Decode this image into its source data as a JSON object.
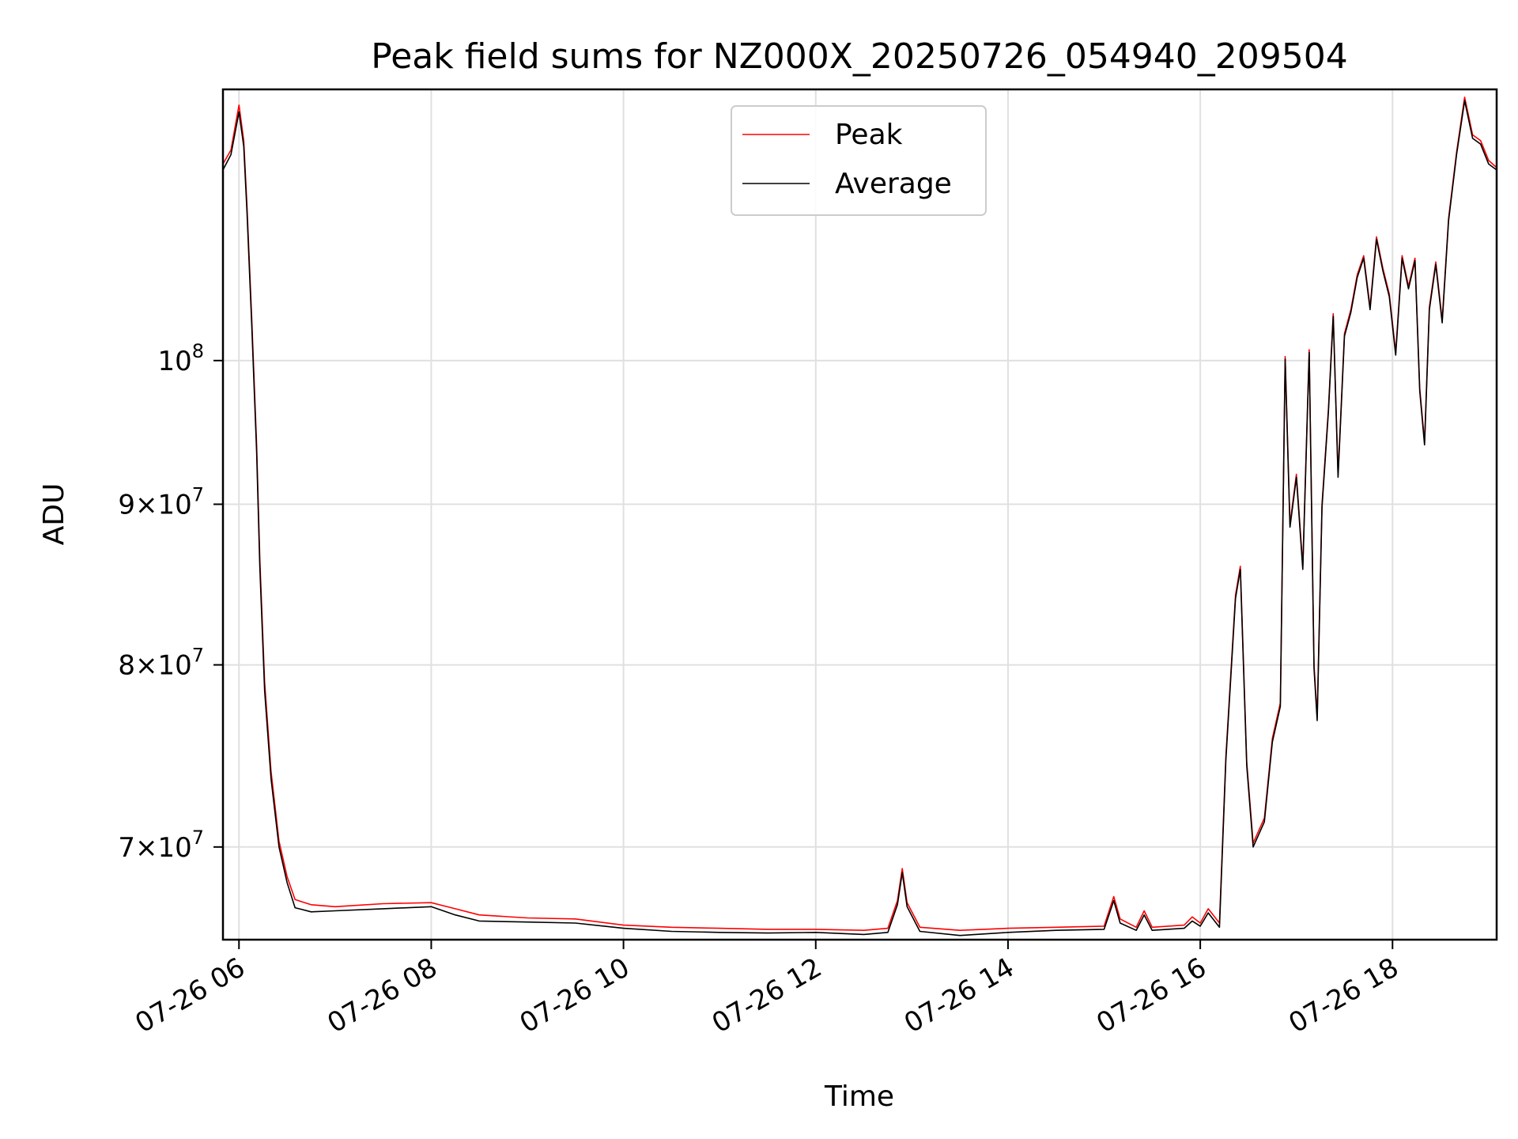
{
  "chart_data": {
    "type": "line",
    "title": "Peak field sums for NZ000X_20250726_054940_209504",
    "xlabel": "Time",
    "ylabel": "ADU",
    "yscale": "log",
    "grid": true,
    "legend_position": "top-center",
    "xlim": [
      "2025-07-26 05:50",
      "2025-07-26 19:05"
    ],
    "ylim": [
      65400000,
      122000000
    ],
    "x_ticks": [
      {
        "t": "2025-07-26 06:00",
        "label": "07-26 06"
      },
      {
        "t": "2025-07-26 08:00",
        "label": "07-26 08"
      },
      {
        "t": "2025-07-26 10:00",
        "label": "07-26 10"
      },
      {
        "t": "2025-07-26 12:00",
        "label": "07-26 12"
      },
      {
        "t": "2025-07-26 14:00",
        "label": "07-26 14"
      },
      {
        "t": "2025-07-26 16:00",
        "label": "07-26 16"
      },
      {
        "t": "2025-07-26 18:00",
        "label": "07-26 18"
      }
    ],
    "y_ticks": [
      {
        "value": 70000000,
        "mant": "7",
        "exp": "7"
      },
      {
        "value": 80000000,
        "mant": "8",
        "exp": "7"
      },
      {
        "value": 90000000,
        "mant": "9",
        "exp": "7"
      },
      {
        "value": 100000000,
        "mant": "",
        "exp": "8"
      }
    ],
    "series": [
      {
        "name": "Peak",
        "color": "#ff0000",
        "points": [
          [
            "2025-07-26 05:50",
            115500000
          ],
          [
            "2025-07-26 05:55",
            116700000
          ],
          [
            "2025-07-26 06:00",
            120600000
          ],
          [
            "2025-07-26 06:03",
            117500000
          ],
          [
            "2025-07-26 06:05",
            112000000
          ],
          [
            "2025-07-26 06:08",
            103000000
          ],
          [
            "2025-07-26 06:11",
            94000000
          ],
          [
            "2025-07-26 06:13",
            86500000
          ],
          [
            "2025-07-26 06:16",
            79000000
          ],
          [
            "2025-07-26 06:20",
            74000000
          ],
          [
            "2025-07-26 06:25",
            70300000
          ],
          [
            "2025-07-26 06:30",
            68500000
          ],
          [
            "2025-07-26 06:35",
            67350000
          ],
          [
            "2025-07-26 06:45",
            67100000
          ],
          [
            "2025-07-26 07:00",
            67000000
          ],
          [
            "2025-07-26 07:30",
            67150000
          ],
          [
            "2025-07-26 08:00",
            67200000
          ],
          [
            "2025-07-26 08:15",
            66900000
          ],
          [
            "2025-07-26 08:30",
            66600000
          ],
          [
            "2025-07-26 09:00",
            66450000
          ],
          [
            "2025-07-26 09:30",
            66400000
          ],
          [
            "2025-07-26 10:00",
            66100000
          ],
          [
            "2025-07-26 10:30",
            66000000
          ],
          [
            "2025-07-26 11:00",
            65950000
          ],
          [
            "2025-07-26 11:30",
            65900000
          ],
          [
            "2025-07-26 12:00",
            65900000
          ],
          [
            "2025-07-26 12:30",
            65850000
          ],
          [
            "2025-07-26 12:45",
            65950000
          ],
          [
            "2025-07-26 12:51",
            67300000
          ],
          [
            "2025-07-26 12:54",
            68900000
          ],
          [
            "2025-07-26 12:57",
            67200000
          ],
          [
            "2025-07-26 13:05",
            66000000
          ],
          [
            "2025-07-26 13:30",
            65850000
          ],
          [
            "2025-07-26 14:00",
            65950000
          ],
          [
            "2025-07-26 14:30",
            66000000
          ],
          [
            "2025-07-26 15:00",
            66050000
          ],
          [
            "2025-07-26 15:06",
            67500000
          ],
          [
            "2025-07-26 15:10",
            66400000
          ],
          [
            "2025-07-26 15:20",
            66000000
          ],
          [
            "2025-07-26 15:25",
            66800000
          ],
          [
            "2025-07-26 15:30",
            66000000
          ],
          [
            "2025-07-26 15:50",
            66100000
          ],
          [
            "2025-07-26 15:55",
            66500000
          ],
          [
            "2025-07-26 16:00",
            66200000
          ],
          [
            "2025-07-26 16:05",
            66900000
          ],
          [
            "2025-07-26 16:12",
            66200000
          ],
          [
            "2025-07-26 16:16",
            74800000
          ],
          [
            "2025-07-26 16:22",
            84200000
          ],
          [
            "2025-07-26 16:25",
            86000000
          ],
          [
            "2025-07-26 16:29",
            74500000
          ],
          [
            "2025-07-26 16:33",
            70200000
          ],
          [
            "2025-07-26 16:40",
            71500000
          ],
          [
            "2025-07-26 16:45",
            75800000
          ],
          [
            "2025-07-26 16:50",
            77800000
          ],
          [
            "2025-07-26 16:53",
            100300000
          ],
          [
            "2025-07-26 16:56",
            88700000
          ],
          [
            "2025-07-26 17:00",
            92000000
          ],
          [
            "2025-07-26 17:04",
            86000000
          ],
          [
            "2025-07-26 17:08",
            100800000
          ],
          [
            "2025-07-26 17:11",
            80000000
          ],
          [
            "2025-07-26 17:13",
            77000000
          ],
          [
            "2025-07-26 17:16",
            90000000
          ],
          [
            "2025-07-26 17:20",
            96500000
          ],
          [
            "2025-07-26 17:23",
            103500000
          ],
          [
            "2025-07-26 17:26",
            92000000
          ],
          [
            "2025-07-26 17:30",
            102000000
          ],
          [
            "2025-07-26 17:34",
            103800000
          ],
          [
            "2025-07-26 17:38",
            106500000
          ],
          [
            "2025-07-26 17:42",
            108000000
          ],
          [
            "2025-07-26 17:46",
            104000000
          ],
          [
            "2025-07-26 17:50",
            109500000
          ],
          [
            "2025-07-26 17:54",
            107000000
          ],
          [
            "2025-07-26 17:58",
            105000000
          ],
          [
            "2025-07-26 18:02",
            100600000
          ],
          [
            "2025-07-26 18:06",
            108000000
          ],
          [
            "2025-07-26 18:10",
            105600000
          ],
          [
            "2025-07-26 18:14",
            107800000
          ],
          [
            "2025-07-26 18:17",
            98000000
          ],
          [
            "2025-07-26 18:20",
            94200000
          ],
          [
            "2025-07-26 18:23",
            104000000
          ],
          [
            "2025-07-26 18:27",
            107500000
          ],
          [
            "2025-07-26 18:31",
            103000000
          ],
          [
            "2025-07-26 18:35",
            111000000
          ],
          [
            "2025-07-26 18:40",
            116500000
          ],
          [
            "2025-07-26 18:45",
            121300000
          ],
          [
            "2025-07-26 18:50",
            118000000
          ],
          [
            "2025-07-26 18:55",
            117500000
          ],
          [
            "2025-07-26 19:00",
            115800000
          ],
          [
            "2025-07-26 19:05",
            115200000
          ]
        ]
      },
      {
        "name": "Average",
        "color": "#000000",
        "points": [
          [
            "2025-07-26 05:50",
            115000000
          ],
          [
            "2025-07-26 05:55",
            116300000
          ],
          [
            "2025-07-26 06:00",
            120000000
          ],
          [
            "2025-07-26 06:03",
            117000000
          ],
          [
            "2025-07-26 06:05",
            111500000
          ],
          [
            "2025-07-26 06:08",
            102500000
          ],
          [
            "2025-07-26 06:11",
            93500000
          ],
          [
            "2025-07-26 06:13",
            86000000
          ],
          [
            "2025-07-26 06:16",
            78500000
          ],
          [
            "2025-07-26 06:20",
            73600000
          ],
          [
            "2025-07-26 06:25",
            70000000
          ],
          [
            "2025-07-26 06:30",
            68200000
          ],
          [
            "2025-07-26 06:35",
            66950000
          ],
          [
            "2025-07-26 06:45",
            66750000
          ],
          [
            "2025-07-26 07:00",
            66800000
          ],
          [
            "2025-07-26 07:30",
            66900000
          ],
          [
            "2025-07-26 08:00",
            67000000
          ],
          [
            "2025-07-26 08:15",
            66600000
          ],
          [
            "2025-07-26 08:30",
            66300000
          ],
          [
            "2025-07-26 09:00",
            66250000
          ],
          [
            "2025-07-26 09:30",
            66200000
          ],
          [
            "2025-07-26 10:00",
            65950000
          ],
          [
            "2025-07-26 10:30",
            65800000
          ],
          [
            "2025-07-26 11:00",
            65750000
          ],
          [
            "2025-07-26 11:30",
            65720000
          ],
          [
            "2025-07-26 12:00",
            65750000
          ],
          [
            "2025-07-26 12:30",
            65650000
          ],
          [
            "2025-07-26 12:45",
            65750000
          ],
          [
            "2025-07-26 12:51",
            67100000
          ],
          [
            "2025-07-26 12:54",
            68700000
          ],
          [
            "2025-07-26 12:57",
            67000000
          ],
          [
            "2025-07-26 13:05",
            65800000
          ],
          [
            "2025-07-26 13:30",
            65600000
          ],
          [
            "2025-07-26 14:00",
            65750000
          ],
          [
            "2025-07-26 14:30",
            65850000
          ],
          [
            "2025-07-26 15:00",
            65900000
          ],
          [
            "2025-07-26 15:06",
            67300000
          ],
          [
            "2025-07-26 15:10",
            66200000
          ],
          [
            "2025-07-26 15:20",
            65850000
          ],
          [
            "2025-07-26 15:25",
            66600000
          ],
          [
            "2025-07-26 15:30",
            65850000
          ],
          [
            "2025-07-26 15:50",
            65950000
          ],
          [
            "2025-07-26 15:55",
            66300000
          ],
          [
            "2025-07-26 16:00",
            66050000
          ],
          [
            "2025-07-26 16:05",
            66700000
          ],
          [
            "2025-07-26 16:12",
            66000000
          ],
          [
            "2025-07-26 16:16",
            74600000
          ],
          [
            "2025-07-26 16:22",
            84000000
          ],
          [
            "2025-07-26 16:25",
            85800000
          ],
          [
            "2025-07-26 16:29",
            74300000
          ],
          [
            "2025-07-26 16:33",
            70000000
          ],
          [
            "2025-07-26 16:40",
            71300000
          ],
          [
            "2025-07-26 16:45",
            75600000
          ],
          [
            "2025-07-26 16:50",
            77600000
          ],
          [
            "2025-07-26 16:53",
            100100000
          ],
          [
            "2025-07-26 16:56",
            88500000
          ],
          [
            "2025-07-26 17:00",
            91800000
          ],
          [
            "2025-07-26 17:04",
            85800000
          ],
          [
            "2025-07-26 17:08",
            100600000
          ],
          [
            "2025-07-26 17:11",
            79800000
          ],
          [
            "2025-07-26 17:13",
            76800000
          ],
          [
            "2025-07-26 17:16",
            89800000
          ],
          [
            "2025-07-26 17:20",
            96300000
          ],
          [
            "2025-07-26 17:23",
            103300000
          ],
          [
            "2025-07-26 17:26",
            91800000
          ],
          [
            "2025-07-26 17:30",
            101800000
          ],
          [
            "2025-07-26 17:34",
            103600000
          ],
          [
            "2025-07-26 17:38",
            106300000
          ],
          [
            "2025-07-26 17:42",
            107800000
          ],
          [
            "2025-07-26 17:46",
            103800000
          ],
          [
            "2025-07-26 17:50",
            109300000
          ],
          [
            "2025-07-26 17:54",
            106800000
          ],
          [
            "2025-07-26 17:58",
            104800000
          ],
          [
            "2025-07-26 18:02",
            100400000
          ],
          [
            "2025-07-26 18:06",
            107800000
          ],
          [
            "2025-07-26 18:10",
            105400000
          ],
          [
            "2025-07-26 18:14",
            107600000
          ],
          [
            "2025-07-26 18:17",
            97800000
          ],
          [
            "2025-07-26 18:20",
            94000000
          ],
          [
            "2025-07-26 18:23",
            103800000
          ],
          [
            "2025-07-26 18:27",
            107300000
          ],
          [
            "2025-07-26 18:31",
            102800000
          ],
          [
            "2025-07-26 18:35",
            110800000
          ],
          [
            "2025-07-26 18:40",
            116300000
          ],
          [
            "2025-07-26 18:45",
            121000000
          ],
          [
            "2025-07-26 18:50",
            117700000
          ],
          [
            "2025-07-26 18:55",
            117200000
          ],
          [
            "2025-07-26 19:00",
            115500000
          ],
          [
            "2025-07-26 19:05",
            115000000
          ]
        ]
      }
    ]
  }
}
